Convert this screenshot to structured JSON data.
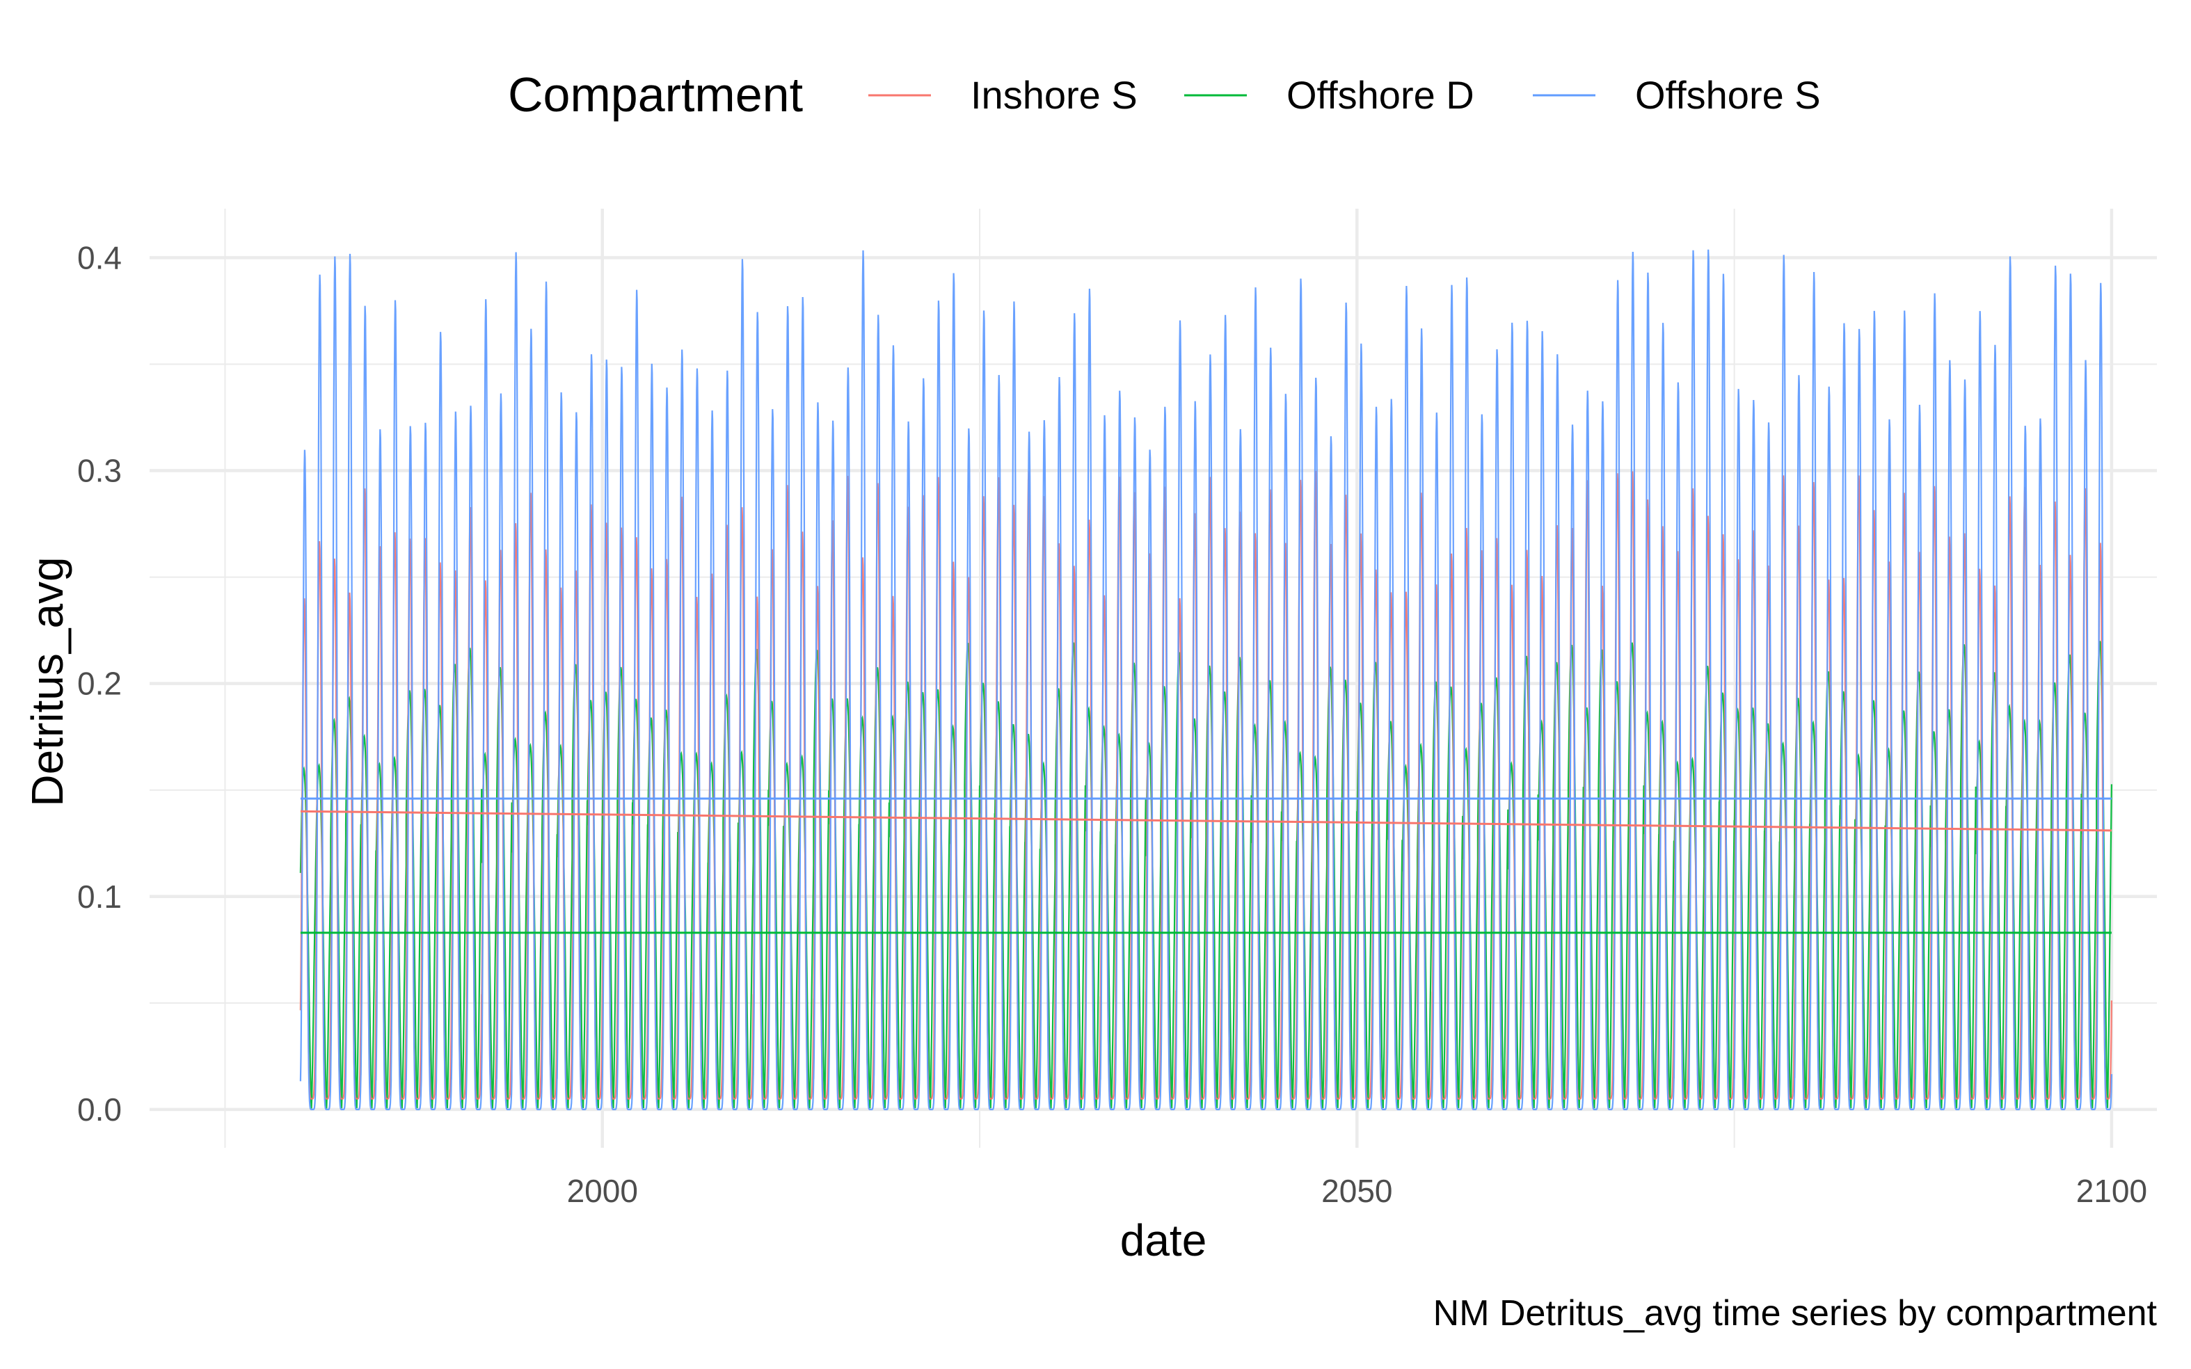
{
  "chart_data": {
    "type": "line",
    "title": "",
    "caption": "NM Detritus_avg time series by compartment",
    "xlabel": "date",
    "ylabel": "Detritus_avg",
    "xlim": [
      1970,
      2103
    ],
    "ylim": [
      -0.018,
      0.423
    ],
    "x_ticks": [
      2000,
      2050,
      2100
    ],
    "x_tick_labels": [
      "2000",
      "2050",
      "2100"
    ],
    "y_ticks": [
      0.0,
      0.1,
      0.2,
      0.3,
      0.4
    ],
    "y_tick_labels": [
      "0.0",
      "0.1",
      "0.2",
      "0.3",
      "0.4"
    ],
    "grid": true,
    "legend": {
      "title": "Compartment",
      "position": "top",
      "entries": [
        "Inshore S",
        "Offshore D",
        "Offshore S"
      ]
    },
    "x_range": [
      1980,
      2100
    ],
    "cycle_years": 1,
    "series": [
      {
        "name": "Inshore S",
        "color": "#F8766D",
        "trough": 0.005,
        "mean_start": 0.14,
        "mean_end": 0.131,
        "peak_range": [
          0.24,
          0.3
        ]
      },
      {
        "name": "Offshore D",
        "color": "#00BA38",
        "trough": 0.0,
        "mean": 0.083,
        "peak_range": [
          0.16,
          0.22
        ]
      },
      {
        "name": "Offshore S",
        "color": "#619CFF",
        "trough": 0.0,
        "mean": 0.146,
        "peak_range": [
          0.31,
          0.405
        ]
      }
    ]
  }
}
